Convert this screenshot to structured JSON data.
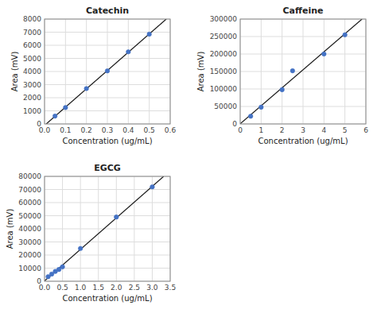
{
  "chart_data": [
    {
      "type": "scatter",
      "title": "Catechin",
      "xlabel": "Concentration (ug/mL)",
      "ylabel": "Area (mV)",
      "x": [
        0.05,
        0.1,
        0.2,
        0.3,
        0.4,
        0.5
      ],
      "values": [
        600,
        1250,
        2700,
        4050,
        5500,
        6850
      ],
      "color": "#4472c4",
      "fit": {
        "type": "line",
        "x": [
          0.0081943,
          0.5813052
        ],
        "values": [
          0,
          8000
        ],
        "color": "#1a1a1a"
      },
      "xlim": [
        0,
        0.6
      ],
      "ylim": [
        0,
        8000
      ],
      "xticks": [
        {
          "value": 0,
          "label": "0.0"
        },
        0.1,
        0.2,
        0.3,
        0.4,
        0.5,
        0.6
      ],
      "yticks": [
        0,
        1000,
        2000,
        3000,
        4000,
        5000,
        6000,
        7000,
        8000
      ],
      "grid": true
    },
    {
      "type": "scatter",
      "title": "Caffeine",
      "xlabel": "Concentration (ug/mL)",
      "ylabel": "Area (mV)",
      "x": [
        0.5,
        1.0,
        2.0,
        2.5,
        4.0,
        5.0
      ],
      "values": [
        22000,
        48000,
        98000,
        152000,
        200000,
        255000
      ],
      "color": "#4472c4",
      "fit": {
        "type": "line",
        "x": [
          0,
          5.81715
        ],
        "values": [
          416.67,
          300000
        ],
        "color": "#1a1a1a"
      },
      "xlim": [
        0,
        6
      ],
      "ylim": [
        0,
        300000
      ],
      "xticks": [
        0,
        1,
        2,
        3,
        4,
        5,
        6
      ],
      "yticks": [
        0,
        50000,
        100000,
        150000,
        200000,
        250000,
        300000
      ],
      "grid": true
    },
    {
      "type": "scatter",
      "title": "EGCG",
      "xlabel": "Concentration (ug/mL)",
      "ylabel": "Area (mV)",
      "x": [
        0.1,
        0.2,
        0.3,
        0.4,
        0.5,
        1.0,
        2.0,
        3.0
      ],
      "values": [
        3500,
        5500,
        7500,
        9000,
        11000,
        25000,
        49000,
        72000
      ],
      "color": "#4472c4",
      "fit": {
        "type": "line",
        "x": [
          0,
          3.31693
        ],
        "values": [
          280.55,
          80000
        ],
        "color": "#1a1a1a"
      },
      "xlim": [
        0,
        3.5
      ],
      "ylim": [
        0,
        80000
      ],
      "xticks": [
        {
          "value": 0,
          "label": "0.0"
        },
        0.5,
        {
          "value": 1.0,
          "label": "1.0"
        },
        1.5,
        {
          "value": 2.0,
          "label": "2.0"
        },
        2.5,
        {
          "value": 3.0,
          "label": "3.0"
        },
        3.5
      ],
      "yticks": [
        0,
        10000,
        20000,
        30000,
        40000,
        50000,
        60000,
        70000,
        80000
      ],
      "grid": true
    }
  ]
}
